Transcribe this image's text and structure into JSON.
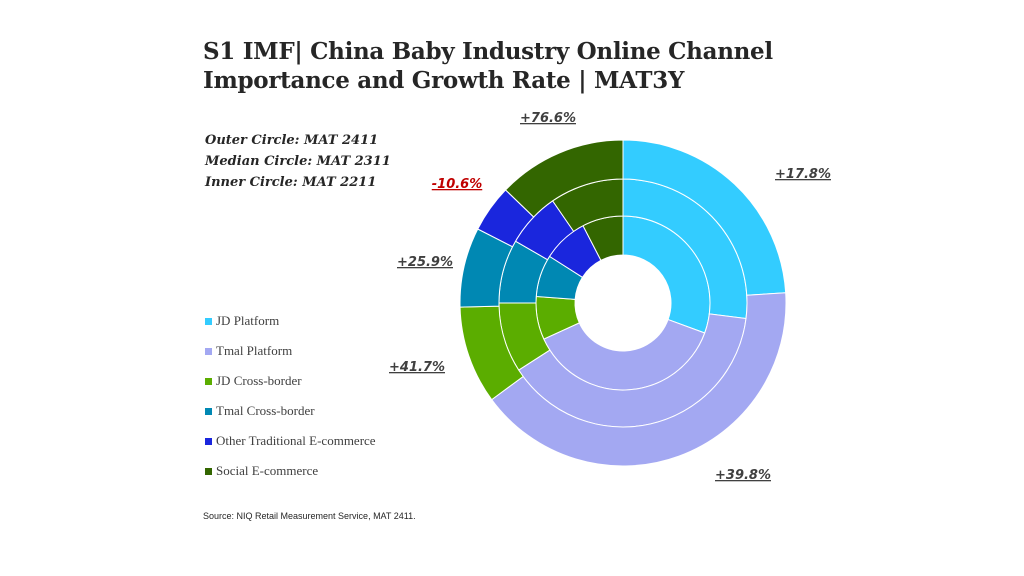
{
  "title": [
    "S1 IMF| China Baby Industry Online Channel",
    "Importance and Growth Rate | MAT3Y"
  ],
  "ring_labels": [
    "Outer Circle: MAT 2411",
    "Median Circle: MAT 2311",
    "Inner Circle: MAT 2211"
  ],
  "source": "Source: NIQ Retail Measurement Service, MAT 2411.",
  "chart_data": {
    "type": "pie",
    "subtype": "multi-ring donut",
    "categories": [
      "JD Platform",
      "Tmal Platform",
      "JD Cross-border",
      "Tmal Cross-border",
      "Other Traditional E-commerce",
      "Social E-commerce"
    ],
    "colors": [
      "#33CCFF",
      "#A3A8F2",
      "#5BAD00",
      "#0088B3",
      "#1A26DD",
      "#336600"
    ],
    "series": [
      {
        "name": "MAT 2211",
        "ring": "inner",
        "values": [
          30.6,
          37.6,
          8.0,
          7.8,
          8.4,
          7.6
        ]
      },
      {
        "name": "MAT 2311",
        "ring": "middle",
        "values": [
          27.0,
          38.9,
          9.1,
          8.3,
          7.1,
          9.6
        ]
      },
      {
        "name": "MAT 2411",
        "ring": "outer",
        "values": [
          24.0,
          40.9,
          9.7,
          7.9,
          4.7,
          12.8
        ]
      }
    ],
    "growth_labels": [
      "+17.8%",
      "+39.8%",
      "+41.7%",
      "+25.9%",
      "-10.6%",
      "+76.6%"
    ],
    "growth_colors": [
      "#404040",
      "#404040",
      "#404040",
      "#404040",
      "#C00000",
      "#404040"
    ],
    "legend_position": "left",
    "start_angle": "12 o'clock, clockwise"
  }
}
